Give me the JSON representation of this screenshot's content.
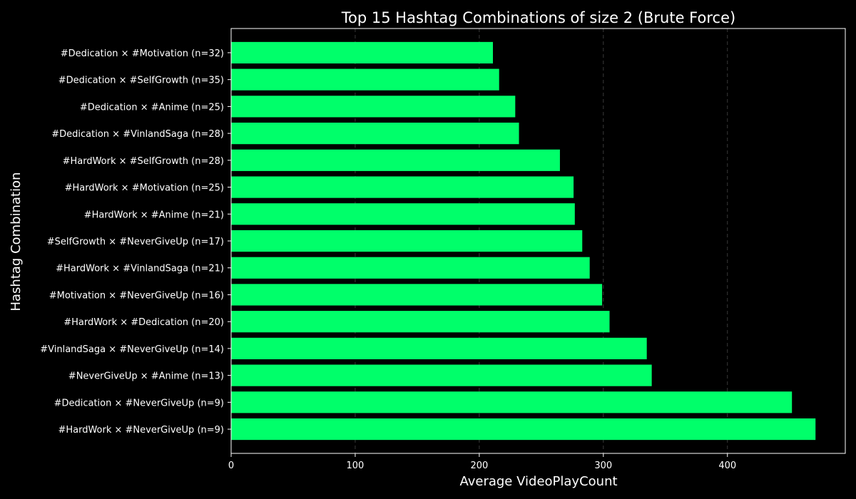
{
  "chart_data": {
    "type": "bar",
    "orientation": "horizontal",
    "title": "Top 15 Hashtag Combinations of size 2 (Brute Force)",
    "xlabel": "Average VideoPlayCount",
    "ylabel": "Hashtag Combination",
    "xlim": [
      0,
      495
    ],
    "xticks": [
      0,
      100,
      200,
      300,
      400
    ],
    "grid": "x, dashed",
    "bar_color": "#00ff6a",
    "background": "#000000",
    "categories": [
      "#HardWork × #NeverGiveUp (n=9)",
      "#Dedication × #NeverGiveUp (n=9)",
      "#NeverGiveUp × #Anime (n=13)",
      "#VinlandSaga × #NeverGiveUp (n=14)",
      "#HardWork × #Dedication (n=20)",
      "#Motivation × #NeverGiveUp (n=16)",
      "#HardWork × #VinlandSaga (n=21)",
      "#SelfGrowth × #NeverGiveUp (n=17)",
      "#HardWork × #Anime (n=21)",
      "#HardWork × #Motivation (n=25)",
      "#HardWork × #SelfGrowth (n=28)",
      "#Dedication × #VinlandSaga (n=28)",
      "#Dedication × #Anime (n=25)",
      "#Dedication × #SelfGrowth (n=35)",
      "#Dedication × #Motivation (n=32)"
    ],
    "values": [
      471,
      452,
      339,
      335,
      305,
      299,
      289,
      283,
      277,
      276,
      265,
      232,
      229,
      216,
      211
    ]
  }
}
